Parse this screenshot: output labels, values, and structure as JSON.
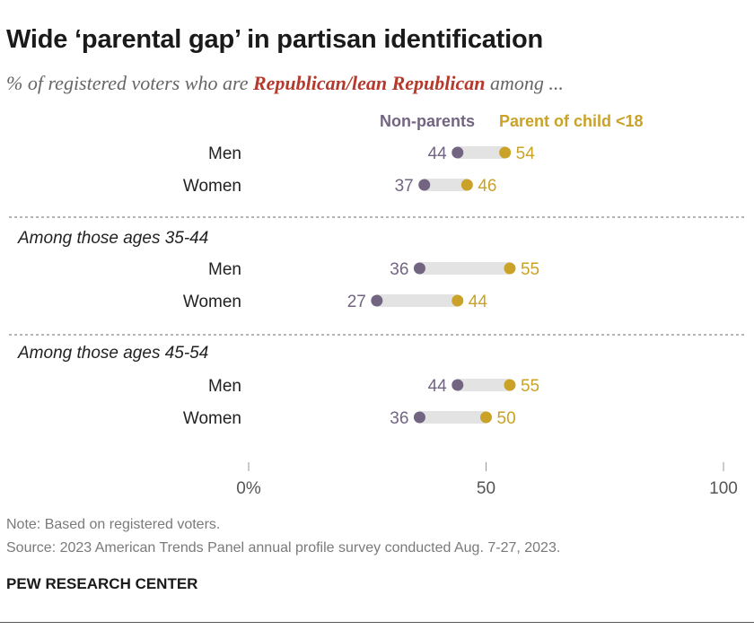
{
  "title": "Wide ‘parental gap’ in partisan identification",
  "subtitle": {
    "before": "% of registered voters who are ",
    "highlight": "Republican/lean Republican",
    "after": " among ..."
  },
  "note": "Note: Based on registered voters.",
  "source": "Source: 2023 American Trends Panel annual profile survey conducted Aug. 7-27, 2023.",
  "logo": "PEW RESEARCH CENTER",
  "colors": {
    "non_parents": "#736582",
    "parents": "#c9a227",
    "connector": "#e3e3e3",
    "highlight": "#b5392c"
  },
  "chart_data": {
    "type": "dot",
    "xlim": [
      0,
      100
    ],
    "ticks": [
      "0%",
      "50",
      "100"
    ],
    "tick_values": [
      0,
      50,
      100
    ],
    "legend": [
      "Non-parents",
      "Parent of child <18"
    ],
    "groups": [
      {
        "heading": "",
        "rows": [
          {
            "label": "Men",
            "non_parents": 44,
            "parents": 54
          },
          {
            "label": "Women",
            "non_parents": 37,
            "parents": 46
          }
        ]
      },
      {
        "heading": "Among those ages 35-44",
        "rows": [
          {
            "label": "Men",
            "non_parents": 36,
            "parents": 55
          },
          {
            "label": "Women",
            "non_parents": 27,
            "parents": 44
          }
        ]
      },
      {
        "heading": "Among those ages 45-54",
        "rows": [
          {
            "label": "Men",
            "non_parents": 44,
            "parents": 55
          },
          {
            "label": "Women",
            "non_parents": 36,
            "parents": 50
          }
        ]
      }
    ]
  }
}
